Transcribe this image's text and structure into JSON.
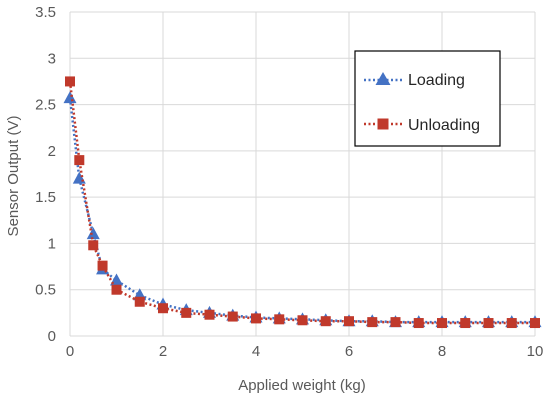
{
  "chart_data": {
    "type": "line",
    "xlabel": "Applied weight (kg)",
    "ylabel": "Sensor Output (V)",
    "xlim": [
      0,
      10
    ],
    "ylim": [
      0,
      3.5
    ],
    "xticks": [
      0,
      2,
      4,
      6,
      8,
      10
    ],
    "yticks": [
      0,
      0.5,
      1,
      1.5,
      2,
      2.5,
      3,
      3.5
    ],
    "grid": true,
    "legend_position": "top-right",
    "series": [
      {
        "name": "Loading",
        "color": "#4472C4",
        "marker": "triangle",
        "line_style": "dotted",
        "x": [
          0,
          0.2,
          0.5,
          0.7,
          1,
          1.5,
          2,
          2.5,
          3,
          3.5,
          4,
          4.5,
          5,
          5.5,
          6,
          6.5,
          7,
          7.5,
          8,
          8.5,
          9,
          9.5,
          10
        ],
        "y": [
          2.57,
          1.7,
          1.1,
          0.72,
          0.6,
          0.44,
          0.34,
          0.28,
          0.25,
          0.22,
          0.2,
          0.19,
          0.18,
          0.17,
          0.16,
          0.16,
          0.15,
          0.15,
          0.15,
          0.15,
          0.15,
          0.15,
          0.15
        ]
      },
      {
        "name": "Unloading",
        "color": "#C0392B",
        "marker": "square",
        "line_style": "dotted",
        "x": [
          0,
          0.2,
          0.5,
          0.7,
          1,
          1.5,
          2,
          2.5,
          3,
          3.5,
          4,
          4.5,
          5,
          5.5,
          6,
          6.5,
          7,
          7.5,
          8,
          8.5,
          9,
          9.5,
          10
        ],
        "y": [
          2.75,
          1.9,
          0.98,
          0.76,
          0.5,
          0.37,
          0.3,
          0.25,
          0.23,
          0.21,
          0.19,
          0.18,
          0.17,
          0.16,
          0.16,
          0.15,
          0.15,
          0.14,
          0.14,
          0.14,
          0.14,
          0.14,
          0.14
        ]
      }
    ]
  }
}
